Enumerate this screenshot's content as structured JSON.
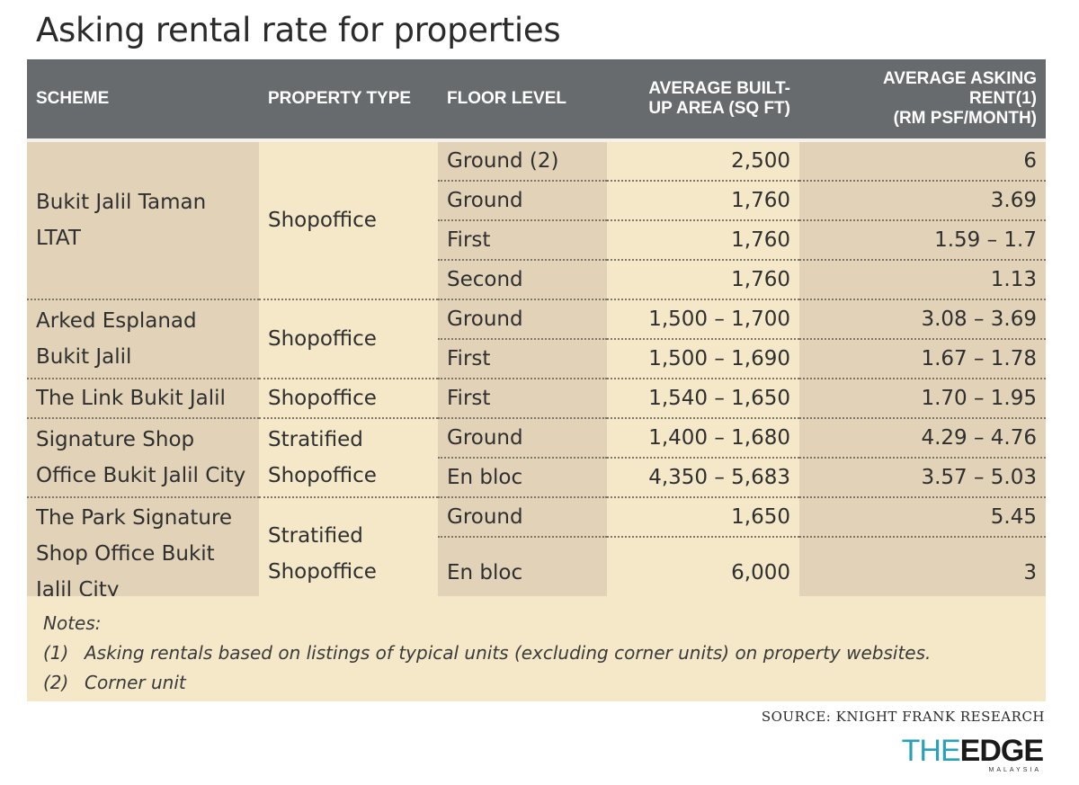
{
  "title": "Asking rental rate for properties",
  "headers": {
    "scheme": "SCHEME",
    "property_type": "PROPERTY TYPE",
    "floor_level": "FLOOR LEVEL",
    "area": "AVERAGE BUILT-\nUP AREA (SQ FT)",
    "rent": "AVERAGE  ASKING\nRENT(1)\n(RM PSF/MONTH)"
  },
  "groups": [
    {
      "scheme": "Bukit Jalil Taman\nLTAT",
      "property_type": "Shopoffice",
      "rows": [
        {
          "floor": "Ground (2)",
          "area": "2,500",
          "rent": "6"
        },
        {
          "floor": "Ground",
          "area": "1,760",
          "rent": "3.69"
        },
        {
          "floor": "First",
          "area": "1,760",
          "rent": "1.59 – 1.7"
        },
        {
          "floor": "Second",
          "area": "1,760",
          "rent": "1.13"
        }
      ]
    },
    {
      "scheme": "Arked Esplanad\nBukit Jalil",
      "property_type": "Shopoffice",
      "rows": [
        {
          "floor": "Ground",
          "area": "1,500 – 1,700",
          "rent": "3.08 – 3.69"
        },
        {
          "floor": "First",
          "area": "1,500 – 1,690",
          "rent": "1.67 – 1.78"
        }
      ]
    },
    {
      "scheme": "The Link Bukit Jalil",
      "property_type": "Shopoffice",
      "rows": [
        {
          "floor": "First",
          "area": "1,540 – 1,650",
          "rent": "1.70 – 1.95"
        }
      ]
    },
    {
      "scheme": "Signature Shop\nOffice Bukit Jalil City",
      "property_type": "Stratified\nShopoffice",
      "rows": [
        {
          "floor": "Ground",
          "area": "1,400 – 1,680",
          "rent": "4.29 – 4.76"
        },
        {
          "floor": "En bloc",
          "area": "4,350 – 5,683",
          "rent": "3.57 – 5.03"
        }
      ]
    },
    {
      "scheme": "The Park Signature\nShop Office Bukit\nJalil City",
      "property_type": "Stratified\nShopoffice",
      "rows": [
        {
          "floor": "Ground",
          "area": "1,650",
          "rent": "5.45"
        },
        {
          "floor": "En bloc",
          "area": "6,000",
          "rent": "3"
        }
      ]
    }
  ],
  "notes": {
    "heading": "Notes:",
    "items": [
      {
        "num": "(1)",
        "text": "Asking rentals based on listings of typical units (excluding corner units) on property websites."
      },
      {
        "num": "(2)",
        "text": "Corner unit"
      }
    ]
  },
  "source": "SOURCE: KNIGHT FRANK RESEARCH",
  "logo": {
    "the": "THE",
    "edge": "EDGE",
    "sub": "MALAYSIA",
    "the_color": "#2aa1b8"
  },
  "colors": {
    "header_bg": "#686b6d",
    "dark_cell": "#e2d3b8",
    "light_cell": "#f4e8c8"
  }
}
